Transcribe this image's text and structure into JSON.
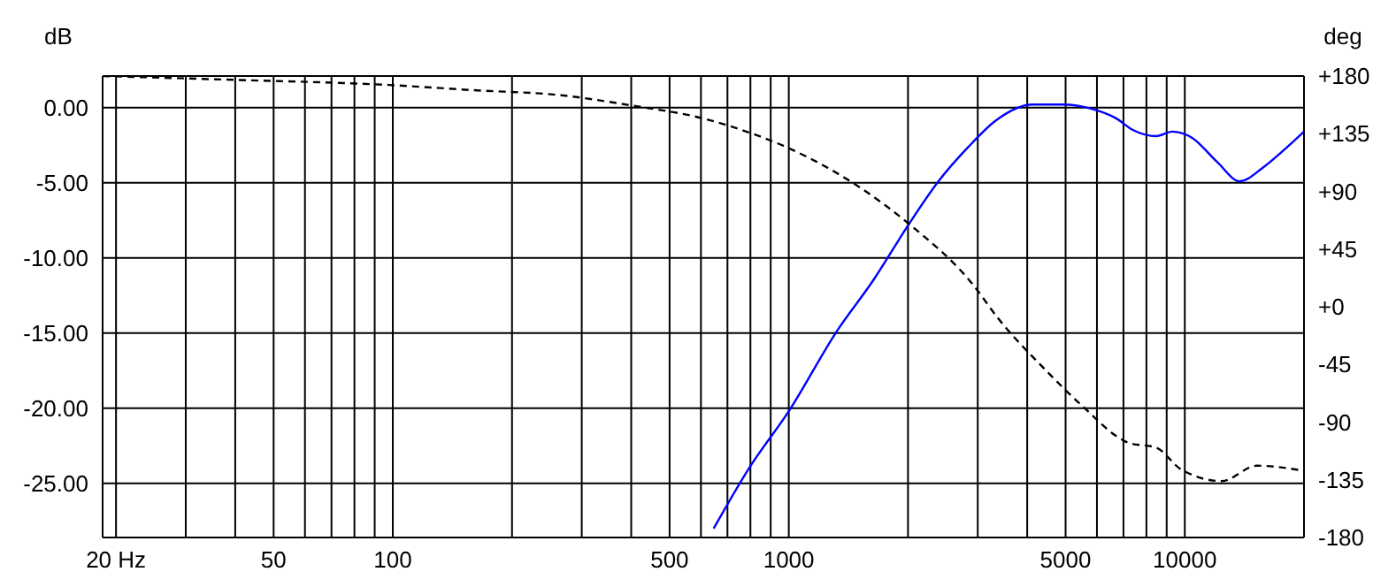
{
  "chart_data": {
    "type": "line",
    "ylabel": "dB",
    "y2label": "deg",
    "log": "x",
    "grid": true,
    "marker": "none",
    "xlim": [
      18.5,
      20000
    ],
    "xticks": [
      {
        "value": 20,
        "label": "20 Hz"
      },
      {
        "value": 30,
        "label": null
      },
      {
        "value": 40,
        "label": null
      },
      50,
      {
        "value": 60,
        "label": null
      },
      {
        "value": 70,
        "label": null
      },
      {
        "value": 80,
        "label": null
      },
      {
        "value": 90,
        "label": null
      },
      100,
      {
        "value": 200,
        "label": null
      },
      {
        "value": 300,
        "label": null
      },
      {
        "value": 400,
        "label": null
      },
      500,
      {
        "value": 600,
        "label": null
      },
      {
        "value": 700,
        "label": null
      },
      {
        "value": 800,
        "label": null
      },
      {
        "value": 900,
        "label": null
      },
      1000,
      {
        "value": 2000,
        "label": null
      },
      {
        "value": 3000,
        "label": null
      },
      {
        "value": 4000,
        "label": null
      },
      5000,
      {
        "value": 6000,
        "label": null
      },
      {
        "value": 7000,
        "label": null
      },
      {
        "value": 8000,
        "label": null
      },
      {
        "value": 9000,
        "label": null
      },
      10000
    ],
    "ylim": [
      -28.6,
      2.1
    ],
    "yticks": [
      {
        "value": 0,
        "label": "0.00"
      },
      {
        "value": -5,
        "label": "-5.00"
      },
      {
        "value": -10,
        "label": "-10.00"
      },
      {
        "value": -15,
        "label": "-15.00"
      },
      {
        "value": -20,
        "label": "-20.00"
      },
      {
        "value": -25,
        "label": "-25.00"
      }
    ],
    "y2lim": [
      -180,
      180
    ],
    "y2ticks": [
      {
        "value": 180,
        "label": "+180"
      },
      {
        "value": 135,
        "label": "+135"
      },
      {
        "value": 90,
        "label": "+90"
      },
      {
        "value": 45,
        "label": "+45"
      },
      {
        "value": 0,
        "label": "+0"
      },
      -45,
      -90,
      -135,
      -180
    ],
    "series": [
      {
        "color": "#0000ff",
        "line_style": "solid",
        "x": [
          646,
          793,
          1000,
          1328,
          1633,
          2005,
          2388,
          2845,
          3357,
          4123,
          4911,
          5848,
          6692,
          7413,
          8475,
          9300,
          10420,
          12050,
          13770,
          15740,
          18190,
          20000
        ],
        "values": [
          -28.0,
          -24.0,
          -20.2,
          -14.8,
          -11.5,
          -7.8,
          -4.9,
          -2.6,
          -0.8,
          0.2,
          0.2,
          -0.1,
          -0.7,
          -1.5,
          -1.9,
          -1.6,
          -2.0,
          -3.6,
          -4.9,
          -4.0,
          -2.6,
          -1.6
        ]
      },
      {
        "color": "#000000",
        "line_style": "dashed",
        "axis": "y2",
        "x": [
          18.5,
          40,
          98,
          159,
          266,
          401,
          606,
          793,
          978,
          1530,
          2005,
          2940,
          3357,
          4440,
          5450,
          7200,
          8475,
          9800,
          12400,
          15200,
          20000
        ],
        "values": [
          180,
          177,
          173,
          169,
          165,
          157,
          147,
          136,
          125,
          92,
          65,
          16,
          -8,
          -49,
          -76,
          -106,
          -110,
          -127,
          -136,
          -124,
          -128
        ]
      }
    ]
  }
}
